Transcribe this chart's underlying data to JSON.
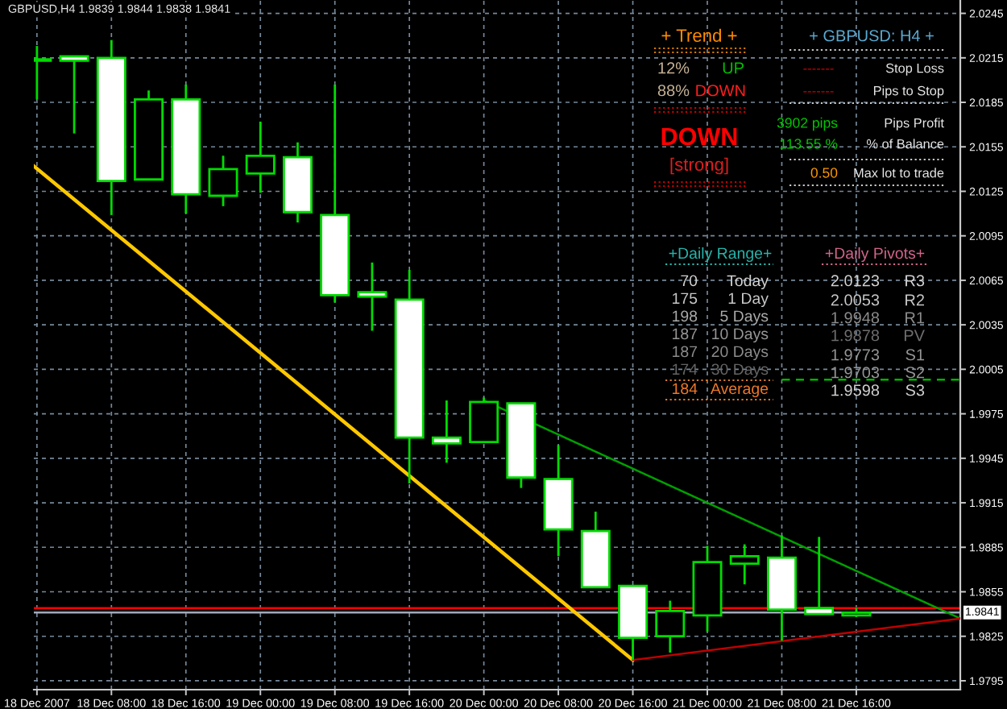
{
  "chart_data": {
    "type": "candlestick",
    "title": "GBPUSD,H4 1.9839 1.9844 1.9838 1.9841",
    "series": [
      {
        "color": "#00dc00",
        "x": [
          "2007-12-18T00:00",
          "2007-12-18T04:00",
          "2007-12-18T08:00",
          "2007-12-18T12:00",
          "2007-12-18T16:00",
          "2007-12-18T20:00",
          "2007-12-19T00:00",
          "2007-12-19T04:00",
          "2007-12-19T08:00",
          "2007-12-19T12:00",
          "2007-12-19T16:00",
          "2007-12-19T20:00",
          "2007-12-20T00:00",
          "2007-12-20T04:00",
          "2007-12-20T08:00",
          "2007-12-20T12:00",
          "2007-12-20T16:00",
          "2007-12-20T20:00",
          "2007-12-21T00:00",
          "2007-12-21T04:00",
          "2007-12-21T08:00",
          "2007-12-21T12:00",
          "2007-12-21T16:00"
        ],
        "ohlc": [
          [
            2.0214,
            2.0223,
            2.0187,
            2.0213
          ],
          [
            2.0216,
            2.0216,
            2.0164,
            2.0213
          ],
          [
            2.0215,
            2.0227,
            2.0109,
            2.0132
          ],
          [
            2.0133,
            2.0193,
            2.0133,
            2.0187
          ],
          [
            2.0187,
            2.0197,
            2.011,
            2.0123
          ],
          [
            2.0122,
            2.0149,
            2.0115,
            2.014
          ],
          [
            2.0137,
            2.0172,
            2.0124,
            2.0149
          ],
          [
            2.0148,
            2.0158,
            2.0104,
            2.0111
          ],
          [
            2.0109,
            2.0197,
            2.005,
            2.0055
          ],
          [
            2.0057,
            2.0077,
            2.0031,
            2.0054
          ],
          [
            2.0052,
            2.0072,
            1.9928,
            1.9959
          ],
          [
            1.9959,
            1.9984,
            1.9942,
            1.9955
          ],
          [
            1.9956,
            1.9986,
            1.9956,
            1.9983
          ],
          [
            1.9982,
            1.9982,
            1.9925,
            1.9932
          ],
          [
            1.9931,
            1.9954,
            1.9879,
            1.9897
          ],
          [
            1.9896,
            1.9909,
            1.9858,
            1.9858
          ],
          [
            1.9859,
            1.9859,
            1.9809,
            1.9824
          ],
          [
            1.9825,
            1.9849,
            1.9814,
            1.9842
          ],
          [
            1.9839,
            1.9886,
            1.9828,
            1.9875
          ],
          [
            1.9874,
            1.9887,
            1.986,
            1.9879
          ],
          [
            1.9878,
            1.9893,
            1.9822,
            1.9843
          ],
          [
            1.9844,
            1.9892,
            1.984,
            1.984
          ],
          [
            1.9839,
            1.9844,
            1.9838,
            1.9841
          ]
        ],
        "colors": [
          "#ffffff",
          "#ffffff",
          "#ffffff",
          "#000000",
          "#ffffff",
          "#000000",
          "#000000",
          "#ffffff",
          "#ffffff",
          "#ffffff",
          "#ffffff",
          "#ffffff",
          "#000000",
          "#ffffff",
          "#ffffff",
          "#ffffff",
          "#ffffff",
          "#000000",
          "#000000",
          "#000000",
          "#ffffff",
          "#ffffff",
          "#000000"
        ]
      },
      {
        "type": "line",
        "color": "#ffc800",
        "x": [
          "2007-12-17T23:40",
          "2007-12-20T16:00"
        ],
        "values": [
          2.0142,
          1.9809
        ]
      },
      {
        "type": "line",
        "color": "#00a000",
        "x": [
          "2007-12-20T00:00",
          "2007-12-22T03:10"
        ],
        "values": [
          1.9984,
          1.9837
        ]
      },
      {
        "type": "line",
        "color": "#c00000",
        "x": [
          "2007-12-20T16:00",
          "2007-12-22T03:10"
        ],
        "values": [
          1.9809,
          1.9837
        ]
      },
      {
        "type": "line",
        "color": "#00b400",
        "line_style": "dashed",
        "x": [
          "2007-12-21T08:00",
          "2007-12-22T03:10"
        ],
        "values": [
          1.9998,
          1.9998
        ]
      }
    ],
    "xlim": [
      "2007-12-17T23:40",
      "2007-12-22T03:10"
    ],
    "xticks": [
      {
        "value": "2007-12-18T00:00",
        "label": "18 Dec 2007"
      },
      {
        "value": "2007-12-18T08:00",
        "label": "18 Dec 08:00"
      },
      {
        "value": "2007-12-18T16:00",
        "label": "18 Dec 16:00"
      },
      {
        "value": "2007-12-19T00:00",
        "label": "19 Dec 00:00"
      },
      {
        "value": "2007-12-19T08:00",
        "label": "19 Dec 08:00"
      },
      {
        "value": "2007-12-19T16:00",
        "label": "19 Dec 16:00"
      },
      {
        "value": "2007-12-20T00:00",
        "label": "20 Dec 00:00"
      },
      {
        "value": "2007-12-20T08:00",
        "label": "20 Dec 08:00"
      },
      {
        "value": "2007-12-20T16:00",
        "label": "20 Dec 16:00"
      },
      {
        "value": "2007-12-21T00:00",
        "label": "21 Dec 00:00"
      },
      {
        "value": "2007-12-21T08:00",
        "label": "21 Dec 08:00"
      },
      {
        "value": "2007-12-21T16:00",
        "label": "21 Dec 16:00"
      }
    ],
    "ylim": [
      1.9789,
      2.0254
    ],
    "yticks": [
      1.9795,
      1.9825,
      1.9855,
      1.9885,
      1.9915,
      1.9945,
      1.9975,
      2.0005,
      2.0035,
      2.0065,
      2.0095,
      2.0125,
      2.0155,
      2.0185,
      2.0215,
      2.0245
    ],
    "grid": true,
    "ref_lines": [
      {
        "axis": "y",
        "value": 1.9844,
        "color": "#ff0000"
      },
      {
        "axis": "y",
        "value": 1.9841,
        "label": "1.9841",
        "color": "#a0a8b8"
      }
    ],
    "annotations": [
      "+ Trend +",
      "12%",
      "UP",
      "88%",
      "DOWN",
      "DOWN",
      "[strong]",
      "+ GBPUSD: H4 +",
      "-------",
      "Stop Loss",
      "-------",
      "Pips to Stop",
      "3902 pips",
      "Pips Profit",
      "113.55 %",
      "% of Balance",
      "0.50",
      "Max lot to trade",
      "+Daily Range+",
      "70",
      "Today",
      "175",
      "1 Day",
      "198",
      "5 Days",
      "187",
      "10 Days",
      "187",
      "20 Days",
      "174",
      "30 Days",
      "184",
      "Average",
      "+Daily Pivots+",
      "2.0123",
      "R3",
      "2.0053",
      "R2",
      "1.9948",
      "R1",
      "1.9878",
      "PV",
      "1.9773",
      "S1",
      "1.9703",
      "S2",
      "1.9598",
      "S3"
    ]
  }
}
